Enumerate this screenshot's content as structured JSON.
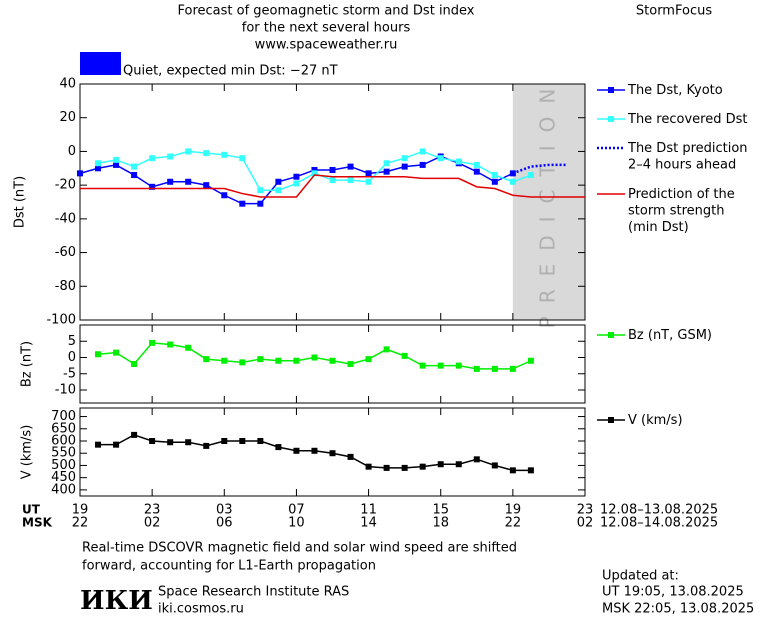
{
  "header": {
    "title": [
      "Forecast of geomagnetic storm and Dst index",
      "for the next several hours",
      "www.spaceweather.ru"
    ],
    "brand": "StormFocus",
    "status": {
      "text": "Quiet, expected min Dst: −27 nT",
      "color": "#0000ff"
    }
  },
  "chart_data": [
    {
      "type": "line",
      "y_label": "Dst (nT)",
      "xlim": [
        19,
        47
      ],
      "ylim": [
        -100,
        40
      ],
      "yticks": [
        40,
        20,
        0,
        -20,
        -40,
        -60,
        -80,
        -100
      ],
      "prediction_zone": {
        "xlim": [
          43,
          47
        ],
        "label": "PREDICTION",
        "color": "#d9d9d9"
      },
      "series": [
        {
          "name": "The Dst, Kyoto",
          "color": "#0000ff",
          "marker": true,
          "style": "solid",
          "x": [
            19,
            20,
            21,
            22,
            23,
            24,
            25,
            26,
            27,
            28,
            29,
            30,
            31,
            32,
            33,
            34,
            35,
            36,
            37,
            38,
            39,
            40,
            41,
            42,
            43
          ],
          "values": [
            -13,
            -10,
            -8,
            -14,
            -21,
            -18,
            -18,
            -20,
            -26,
            -31,
            -31,
            -18,
            -15,
            -11,
            -11,
            -9,
            -13,
            -12,
            -9,
            -8,
            -3,
            -7,
            -12,
            -18,
            -13
          ]
        },
        {
          "name": "The recovered Dst",
          "color": "#33ffff",
          "marker": true,
          "style": "solid",
          "x": [
            20,
            21,
            22,
            23,
            24,
            25,
            26,
            27,
            28,
            29,
            30,
            31,
            32,
            33,
            34,
            35,
            36,
            37,
            38,
            39,
            40,
            41,
            42,
            43,
            44
          ],
          "values": [
            -7,
            -5,
            -9,
            -4,
            -3,
            0,
            -1,
            -2,
            -4,
            -23,
            -23,
            -19,
            -13,
            -17,
            -17,
            -18,
            -7,
            -4,
            0,
            -4,
            -6,
            -8,
            -14,
            -18,
            -14
          ]
        },
        {
          "name": "The Dst prediction\n2–4 hours ahead",
          "color": "#0000ff",
          "marker": false,
          "style": "dotted",
          "x": [
            43,
            44,
            45,
            46
          ],
          "values": [
            -13,
            -9,
            -8,
            -8
          ]
        },
        {
          "name": "Prediction of the\nstorm strength\n(min Dst)",
          "color": "#e00000",
          "marker": false,
          "style": "solid",
          "x": [
            19,
            27,
            28,
            29,
            31,
            32,
            33,
            37,
            38,
            40,
            41,
            42,
            43,
            44,
            47
          ],
          "values": [
            -22,
            -22,
            -25,
            -27,
            -27,
            -14,
            -15,
            -15,
            -16,
            -16,
            -21,
            -22,
            -26,
            -27,
            -27
          ]
        }
      ]
    },
    {
      "type": "line",
      "y_label": "Bz (nT)",
      "xlim": [
        19,
        47
      ],
      "ylim": [
        -14,
        10
      ],
      "yticks": [
        5,
        0,
        -5,
        -10
      ],
      "series": [
        {
          "name": "Bz (nT, GSM)",
          "color": "#00ee00",
          "marker": true,
          "style": "solid",
          "x": [
            20,
            21,
            22,
            23,
            24,
            25,
            26,
            27,
            28,
            29,
            30,
            31,
            32,
            33,
            34,
            35,
            36,
            37,
            38,
            39,
            40,
            41,
            42,
            43,
            44
          ],
          "values": [
            1,
            1.5,
            -2,
            4.5,
            4,
            3,
            -0.5,
            -1,
            -1.5,
            -0.5,
            -1,
            -1,
            0,
            -1,
            -2,
            -0.5,
            2.5,
            0.5,
            -2.5,
            -2.5,
            -2.5,
            -3.5,
            -3.5,
            -3.5,
            -1
          ]
        }
      ]
    },
    {
      "type": "line",
      "y_label": "V (km/s)",
      "xlim": [
        19,
        47
      ],
      "ylim": [
        375,
        735
      ],
      "yticks": [
        700,
        650,
        600,
        550,
        500,
        450,
        400
      ],
      "xticks": [
        {
          "value": 19,
          "label": "19"
        },
        {
          "value": 23,
          "label": "23"
        },
        {
          "value": 27,
          "label": "03"
        },
        {
          "value": 31,
          "label": "07"
        },
        {
          "value": 35,
          "label": "11"
        },
        {
          "value": 39,
          "label": "15"
        },
        {
          "value": 43,
          "label": "19"
        },
        {
          "value": 47,
          "label": "23"
        }
      ],
      "time_rows": [
        {
          "name": "UT",
          "dates": "12.08–13.08.2025"
        },
        {
          "name": "MSK",
          "labels": [
            "22",
            "02",
            "06",
            "10",
            "14",
            "18",
            "22",
            "02"
          ],
          "dates": "12.08–14.08.2025"
        }
      ],
      "series": [
        {
          "name": "V (km/s)",
          "color": "#000000",
          "marker": true,
          "style": "solid",
          "x": [
            20,
            21,
            22,
            23,
            24,
            25,
            26,
            27,
            28,
            29,
            30,
            31,
            32,
            33,
            34,
            35,
            36,
            37,
            38,
            39,
            40,
            41,
            42,
            43,
            44
          ],
          "values": [
            585,
            585,
            625,
            600,
            595,
            595,
            580,
            600,
            600,
            600,
            575,
            560,
            560,
            550,
            535,
            495,
            490,
            490,
            495,
            505,
            505,
            525,
            500,
            480,
            480
          ]
        }
      ]
    }
  ],
  "footer": {
    "note": [
      "Real-time DSCOVR magnetic field and solar wind speed are shifted",
      "forward, accounting for L1-Earth propagation"
    ],
    "logo": "ИКИ",
    "institute": "Space Research Institute RAS",
    "url": "iki.cosmos.ru",
    "updated": [
      "Updated at:",
      "UT   19:05, 13.08.2025",
      "MSK 22:05, 13.08.2025"
    ]
  }
}
